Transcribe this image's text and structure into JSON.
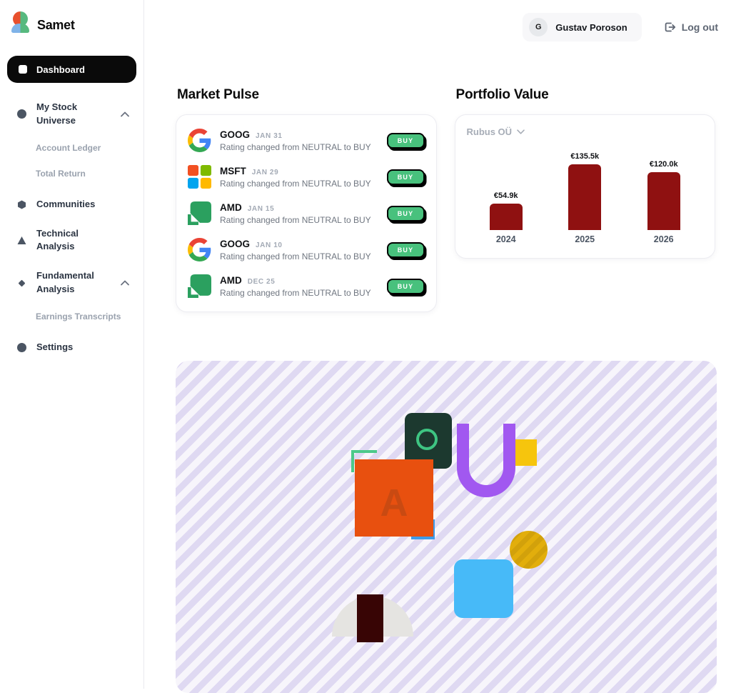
{
  "app": {
    "brand": "Samet"
  },
  "sidebar": {
    "items": [
      {
        "label": "Dashboard",
        "icon": "square-icon",
        "active": true
      },
      {
        "label": "My Stock Universe",
        "icon": "circle-icon",
        "expanded": true
      },
      {
        "label": "Account Ledger",
        "sub_of": "My Stock Universe"
      },
      {
        "label": "Total Return",
        "sub_of": "My Stock Universe"
      },
      {
        "label": "Communities",
        "icon": "hexagon-icon"
      },
      {
        "label": "Technical Analysis",
        "icon": "triangle-icon"
      },
      {
        "label": "Fundamental Analysis",
        "icon": "diamond-icon",
        "expanded": true
      },
      {
        "label": "Earnings Transcripts",
        "sub_of": "Fundamental Analysis"
      },
      {
        "label": "Settings",
        "icon": "circle-icon"
      }
    ]
  },
  "header": {
    "avatar_initial": "G",
    "user_name": "Gustav Poroson",
    "logout_label": "Log out"
  },
  "market_pulse": {
    "title": "Market Pulse",
    "items": [
      {
        "ticker": "GOOG",
        "date": "JAN 31",
        "description": "Rating changed from NEUTRAL to BUY",
        "action_label": "BUY",
        "logo": "google-logo"
      },
      {
        "ticker": "MSFT",
        "date": "JAN 29",
        "description": "Rating changed from NEUTRAL to BUY",
        "action_label": "BUY",
        "logo": "microsoft-logo"
      },
      {
        "ticker": "AMD",
        "date": "JAN 15",
        "description": "Rating changed from NEUTRAL to BUY",
        "action_label": "BUY",
        "logo": "amd-logo"
      },
      {
        "ticker": "GOOG",
        "date": "JAN 10",
        "description": "Rating changed from NEUTRAL to BUY",
        "action_label": "BUY",
        "logo": "google-logo"
      },
      {
        "ticker": "AMD",
        "date": "DEC 25",
        "description": "Rating changed from NEUTRAL to BUY",
        "action_label": "BUY",
        "logo": "amd-logo"
      }
    ]
  },
  "portfolio": {
    "title": "Portfolio Value",
    "account_selector": "Rubus OÜ"
  },
  "chart_data": {
    "type": "bar",
    "title": "Portfolio Value",
    "categories": [
      "2024",
      "2025",
      "2026"
    ],
    "values": [
      54.9,
      135.5,
      120.0
    ],
    "value_labels": [
      "€54.9k",
      "€135.5k",
      "€120.0k"
    ],
    "ylim": [
      0,
      140
    ],
    "grid": false,
    "legend": false,
    "bar_color": "#8F1111"
  },
  "decor": {
    "letter": "A"
  },
  "colors": {
    "accent_green": "#48C17D",
    "bar_red": "#8F1111",
    "active_nav_bg": "#0A0A0A",
    "stripe_lavender": "#DFD9F2"
  }
}
